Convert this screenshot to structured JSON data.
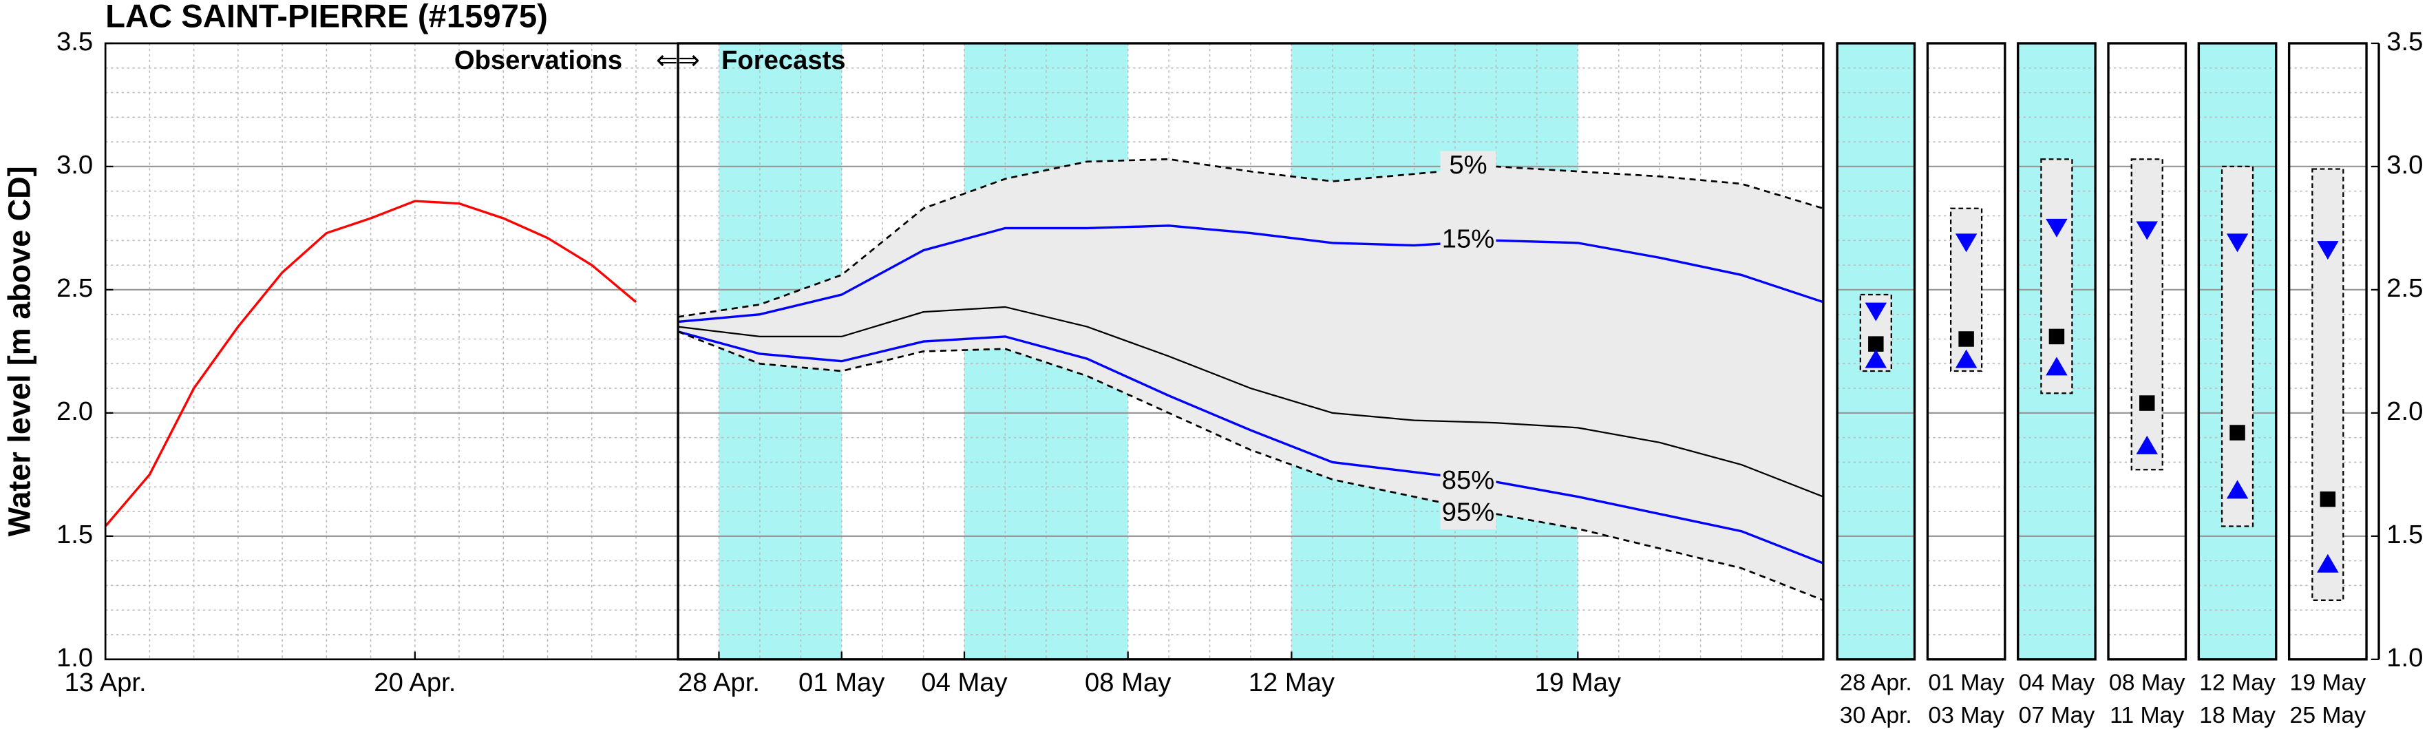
{
  "chart_data": [
    {
      "type": "line",
      "title": "LAC SAINT-PIERRE (#15975)",
      "y_label": "Water level [m above CD]",
      "xlim": [
        13,
        25.95
      ],
      "xticks": [
        {
          "value": 13,
          "label": "13 Apr."
        },
        {
          "value": 20,
          "label": "20 Apr."
        }
      ],
      "ylim": [
        1.0,
        3.5
      ],
      "yticks": [
        {
          "value": 1.0,
          "label": "1.0"
        },
        1.5,
        {
          "value": 2.0,
          "label": "2.0"
        },
        2.5,
        {
          "value": 3.0,
          "label": "3.0"
        },
        3.5
      ],
      "grid": true,
      "series": [
        {
          "color": "#ff0000",
          "x": [
            13,
            14,
            15,
            16,
            17,
            18,
            19,
            20,
            21,
            22,
            23,
            24,
            25
          ],
          "values": [
            1.54,
            1.75,
            2.1,
            2.35,
            2.57,
            2.73,
            2.79,
            2.86,
            2.85,
            2.79,
            2.71,
            2.6,
            2.45
          ]
        }
      ]
    },
    {
      "type": "line",
      "annotation": [
        "Observations",
        "⇐⇒",
        "Forecasts"
      ],
      "xlim": [
        27,
        55
      ],
      "xticks": [
        {
          "value": 28,
          "label": "28 Apr."
        },
        {
          "value": 31,
          "label": "01 May"
        },
        {
          "value": 34,
          "label": "04 May"
        },
        {
          "value": 38,
          "label": "08 May"
        },
        {
          "value": 42,
          "label": "12 May"
        },
        {
          "value": 49,
          "label": "19 May"
        }
      ],
      "ylim": [
        1.0,
        3.5
      ],
      "grid": true,
      "shaded_spans": [
        [
          28,
          31
        ],
        [
          34,
          38
        ],
        [
          42,
          49
        ]
      ],
      "span_color": "#aaf4f4",
      "fill_between": [
        0,
        4
      ],
      "fill_color": "#ebebeb",
      "x": [
        27,
        29,
        31,
        33,
        35,
        37,
        39,
        41,
        43,
        45,
        47,
        49,
        51,
        53,
        55
      ],
      "series": [
        {
          "name": "5%",
          "color": "#000000",
          "dash": true,
          "values": [
            2.39,
            2.44,
            2.56,
            2.83,
            2.95,
            3.02,
            3.03,
            2.98,
            2.94,
            2.97,
            3.0,
            2.98,
            2.96,
            2.93,
            2.83
          ]
        },
        {
          "name": "15%",
          "color": "#0000ff",
          "dash": false,
          "values": [
            2.37,
            2.4,
            2.48,
            2.66,
            2.75,
            2.75,
            2.76,
            2.73,
            2.69,
            2.68,
            2.7,
            2.69,
            2.63,
            2.56,
            2.45
          ]
        },
        {
          "color": "#000000",
          "dash": false,
          "values": [
            2.35,
            2.31,
            2.31,
            2.41,
            2.43,
            2.35,
            2.23,
            2.1,
            2.0,
            1.97,
            1.96,
            1.94,
            1.88,
            1.79,
            1.66
          ]
        },
        {
          "name": "85%",
          "color": "#0000ff",
          "dash": false,
          "values": [
            2.33,
            2.24,
            2.21,
            2.29,
            2.31,
            2.22,
            2.07,
            1.93,
            1.8,
            1.76,
            1.72,
            1.66,
            1.59,
            1.52,
            1.39
          ]
        },
        {
          "name": "95%",
          "color": "#000000",
          "dash": true,
          "values": [
            2.33,
            2.2,
            2.17,
            2.25,
            2.26,
            2.15,
            2.0,
            1.85,
            1.73,
            1.66,
            1.59,
            1.53,
            1.45,
            1.37,
            1.24
          ]
        }
      ]
    },
    {
      "type": "box",
      "categories": [
        [
          "28 Apr.",
          "30 Apr."
        ],
        [
          "01 May",
          "03 May"
        ],
        [
          "04 May",
          "07 May"
        ],
        [
          "08 May",
          "11 May"
        ],
        [
          "12 May",
          "18 May"
        ],
        [
          "19 May",
          "25 May"
        ]
      ],
      "highlight": [
        true,
        false,
        true,
        false,
        true,
        false
      ],
      "highlight_color": "#aaf4f4",
      "box_color": "#ebebeb",
      "box_top": [
        2.48,
        2.83,
        3.03,
        3.03,
        3.0,
        2.99
      ],
      "box_bottom": [
        2.17,
        2.17,
        2.08,
        1.77,
        1.54,
        1.24
      ],
      "upper": [
        2.41,
        2.69,
        2.75,
        2.74,
        2.69,
        2.66
      ],
      "median": [
        2.28,
        2.3,
        2.31,
        2.04,
        1.92,
        1.65
      ],
      "lower": [
        2.22,
        2.22,
        2.19,
        1.87,
        1.69,
        1.39
      ],
      "upper_color": "#0000ff",
      "median_color": "#000000",
      "lower_color": "#0000ff",
      "ylim": [
        1.0,
        3.5
      ],
      "yticks": [
        {
          "value": 1.0,
          "label": "1.0"
        },
        1.5,
        {
          "value": 2.0,
          "label": "2.0"
        },
        2.5,
        {
          "value": 3.0,
          "label": "3.0"
        },
        3.5
      ],
      "grid": true
    }
  ]
}
